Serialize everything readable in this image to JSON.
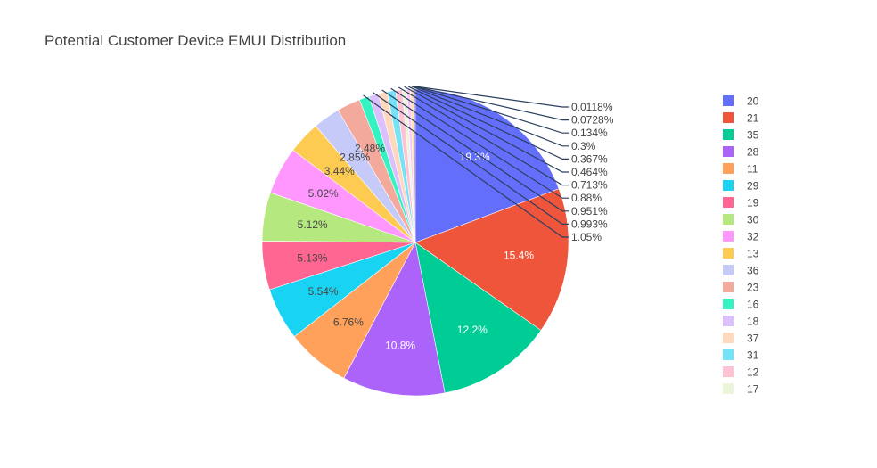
{
  "chart_data": {
    "type": "pie",
    "title": "Potential Customer Device EMUI Distribution",
    "legend_position": "right",
    "slices": [
      {
        "name": "20",
        "percent_label": "19.3%",
        "value": 19.3,
        "color": "#636efa",
        "label_position": "inside"
      },
      {
        "name": "21",
        "percent_label": "15.4%",
        "value": 15.4,
        "color": "#EF553B",
        "label_position": "inside"
      },
      {
        "name": "35",
        "percent_label": "12.2%",
        "value": 12.2,
        "color": "#00cc96",
        "label_position": "inside"
      },
      {
        "name": "28",
        "percent_label": "10.8%",
        "value": 10.8,
        "color": "#ab63fa",
        "label_position": "inside"
      },
      {
        "name": "11",
        "percent_label": "6.76%",
        "value": 6.76,
        "color": "#FFA15A",
        "label_position": "inside"
      },
      {
        "name": "29",
        "percent_label": "5.54%",
        "value": 5.54,
        "color": "#19d3f3",
        "label_position": "inside"
      },
      {
        "name": "19",
        "percent_label": "5.13%",
        "value": 5.13,
        "color": "#FF6692",
        "label_position": "inside"
      },
      {
        "name": "30",
        "percent_label": "5.12%",
        "value": 5.12,
        "color": "#B6E880",
        "label_position": "inside"
      },
      {
        "name": "32",
        "percent_label": "5.02%",
        "value": 5.02,
        "color": "#FF97FF",
        "label_position": "inside"
      },
      {
        "name": "13",
        "percent_label": "3.44%",
        "value": 3.44,
        "color": "#FECB52",
        "label_position": "inside"
      },
      {
        "name": "36",
        "percent_label": "2.85%",
        "value": 2.85,
        "color": "#c6caf8",
        "label_position": "inside"
      },
      {
        "name": "23",
        "percent_label": "2.48%",
        "value": 2.48,
        "color": "#f4a99d",
        "label_position": "inside"
      },
      {
        "name": "16",
        "percent_label": "1.05%",
        "value": 1.05,
        "color": "#33f3c2",
        "label_position": "outside"
      },
      {
        "name": "18",
        "percent_label": "0.993%",
        "value": 0.993,
        "color": "#dcc0fd",
        "label_position": "outside"
      },
      {
        "name": "37",
        "percent_label": "0.951%",
        "value": 0.951,
        "color": "#fed9bd",
        "label_position": "outside"
      },
      {
        "name": "31",
        "percent_label": "0.88%",
        "value": 0.88,
        "color": "#75e2f7",
        "label_position": "outside"
      },
      {
        "name": "12",
        "percent_label": "0.713%",
        "value": 0.713,
        "color": "#ffc2d3",
        "label_position": "outside"
      },
      {
        "name": "17",
        "percent_label": "0.464%",
        "value": 0.464,
        "color": "#e9f6d9",
        "label_position": "outside"
      },
      {
        "name": "",
        "percent_label": "0.367%",
        "value": 0.367,
        "color": "#ffc1ff",
        "label_position": "outside"
      },
      {
        "name": "",
        "percent_label": "0.3%",
        "value": 0.3,
        "color": "#fee3a1",
        "label_position": "outside"
      },
      {
        "name": "",
        "percent_label": "0.134%",
        "value": 0.134,
        "color": "#9aa0f8",
        "label_position": "outside"
      },
      {
        "name": "",
        "percent_label": "0.0728%",
        "value": 0.0728,
        "color": "#f28a76",
        "label_position": "outside"
      },
      {
        "name": "",
        "percent_label": "0.0118%",
        "value": 0.0118,
        "color": "#56d8b3",
        "label_position": "outside"
      }
    ],
    "legend_items": [
      "20",
      "21",
      "35",
      "28",
      "11",
      "29",
      "19",
      "30",
      "32",
      "13",
      "36",
      "23",
      "16",
      "18",
      "37",
      "31",
      "12",
      "17"
    ]
  }
}
